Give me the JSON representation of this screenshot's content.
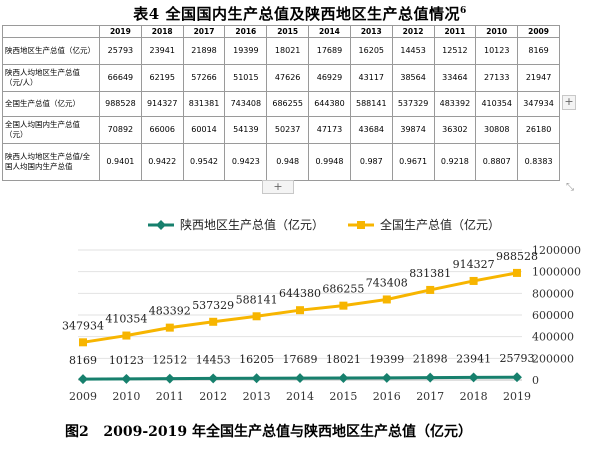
{
  "table": {
    "title": "表4  全国国内生产总值及陕西地区生产总值情况",
    "footnote": "6",
    "years": [
      "2019",
      "2018",
      "2017",
      "2016",
      "2015",
      "2014",
      "2013",
      "2012",
      "2011",
      "2010",
      "2009"
    ],
    "rows": [
      {
        "label": "陕西地区生产总值（亿元）",
        "values": [
          "25793",
          "23941",
          "21898",
          "19399",
          "18021",
          "17689",
          "16205",
          "14453",
          "12512",
          "10123",
          "8169"
        ]
      },
      {
        "label": "陕西人均地区生产总值（元/人）",
        "values": [
          "66649",
          "62195",
          "57266",
          "51015",
          "47626",
          "46929",
          "43117",
          "38564",
          "33464",
          "27133",
          "21947"
        ]
      },
      {
        "label": "全国生产总值（亿元）",
        "values": [
          "988528",
          "914327",
          "831381",
          "743408",
          "686255",
          "644380",
          "588141",
          "537329",
          "483392",
          "410354",
          "347934"
        ]
      },
      {
        "label": "全国人均国内生产总值（元）",
        "values": [
          "70892",
          "66006",
          "60014",
          "54139",
          "50237",
          "47173",
          "43684",
          "39874",
          "36302",
          "30808",
          "26180"
        ]
      },
      {
        "label": "陕西人均地区生产总值/全国人均国内生产总值",
        "values": [
          "0.9401",
          "0.9422",
          "0.9542",
          "0.9423",
          "0.948",
          "0.9948",
          "0.987",
          "0.9671",
          "0.9218",
          "0.8807",
          "0.8383"
        ]
      }
    ],
    "add_row_symbol": "+",
    "add_column_symbol": "+",
    "resize_symbol": "⤡"
  },
  "chart_data": {
    "type": "line",
    "x": [
      "2009",
      "2010",
      "2011",
      "2012",
      "2013",
      "2014",
      "2015",
      "2016",
      "2017",
      "2018",
      "2019"
    ],
    "series": [
      {
        "name": "陕西地区生产总值（亿元）",
        "color": "#17806d",
        "values": [
          8169,
          10123,
          12512,
          14453,
          16205,
          17689,
          18021,
          19399,
          21898,
          23941,
          25793
        ]
      },
      {
        "name": "全国生产总值（亿元）",
        "color": "#f7b500",
        "values": [
          347934,
          410354,
          483392,
          537329,
          588141,
          644380,
          686255,
          743408,
          831381,
          914327,
          988528
        ]
      }
    ],
    "ylim": [
      0,
      1200000
    ],
    "yticks": [
      "0",
      "200000",
      "400000",
      "600000",
      "800000",
      "1000000",
      "1200000"
    ],
    "y_axis_side": "right",
    "legend": "top",
    "grid": "horizontal"
  },
  "figure": {
    "caption_label": "图2",
    "caption_text": "2009-2019 年全国生产总值与陕西地区生产总值（亿元）"
  }
}
